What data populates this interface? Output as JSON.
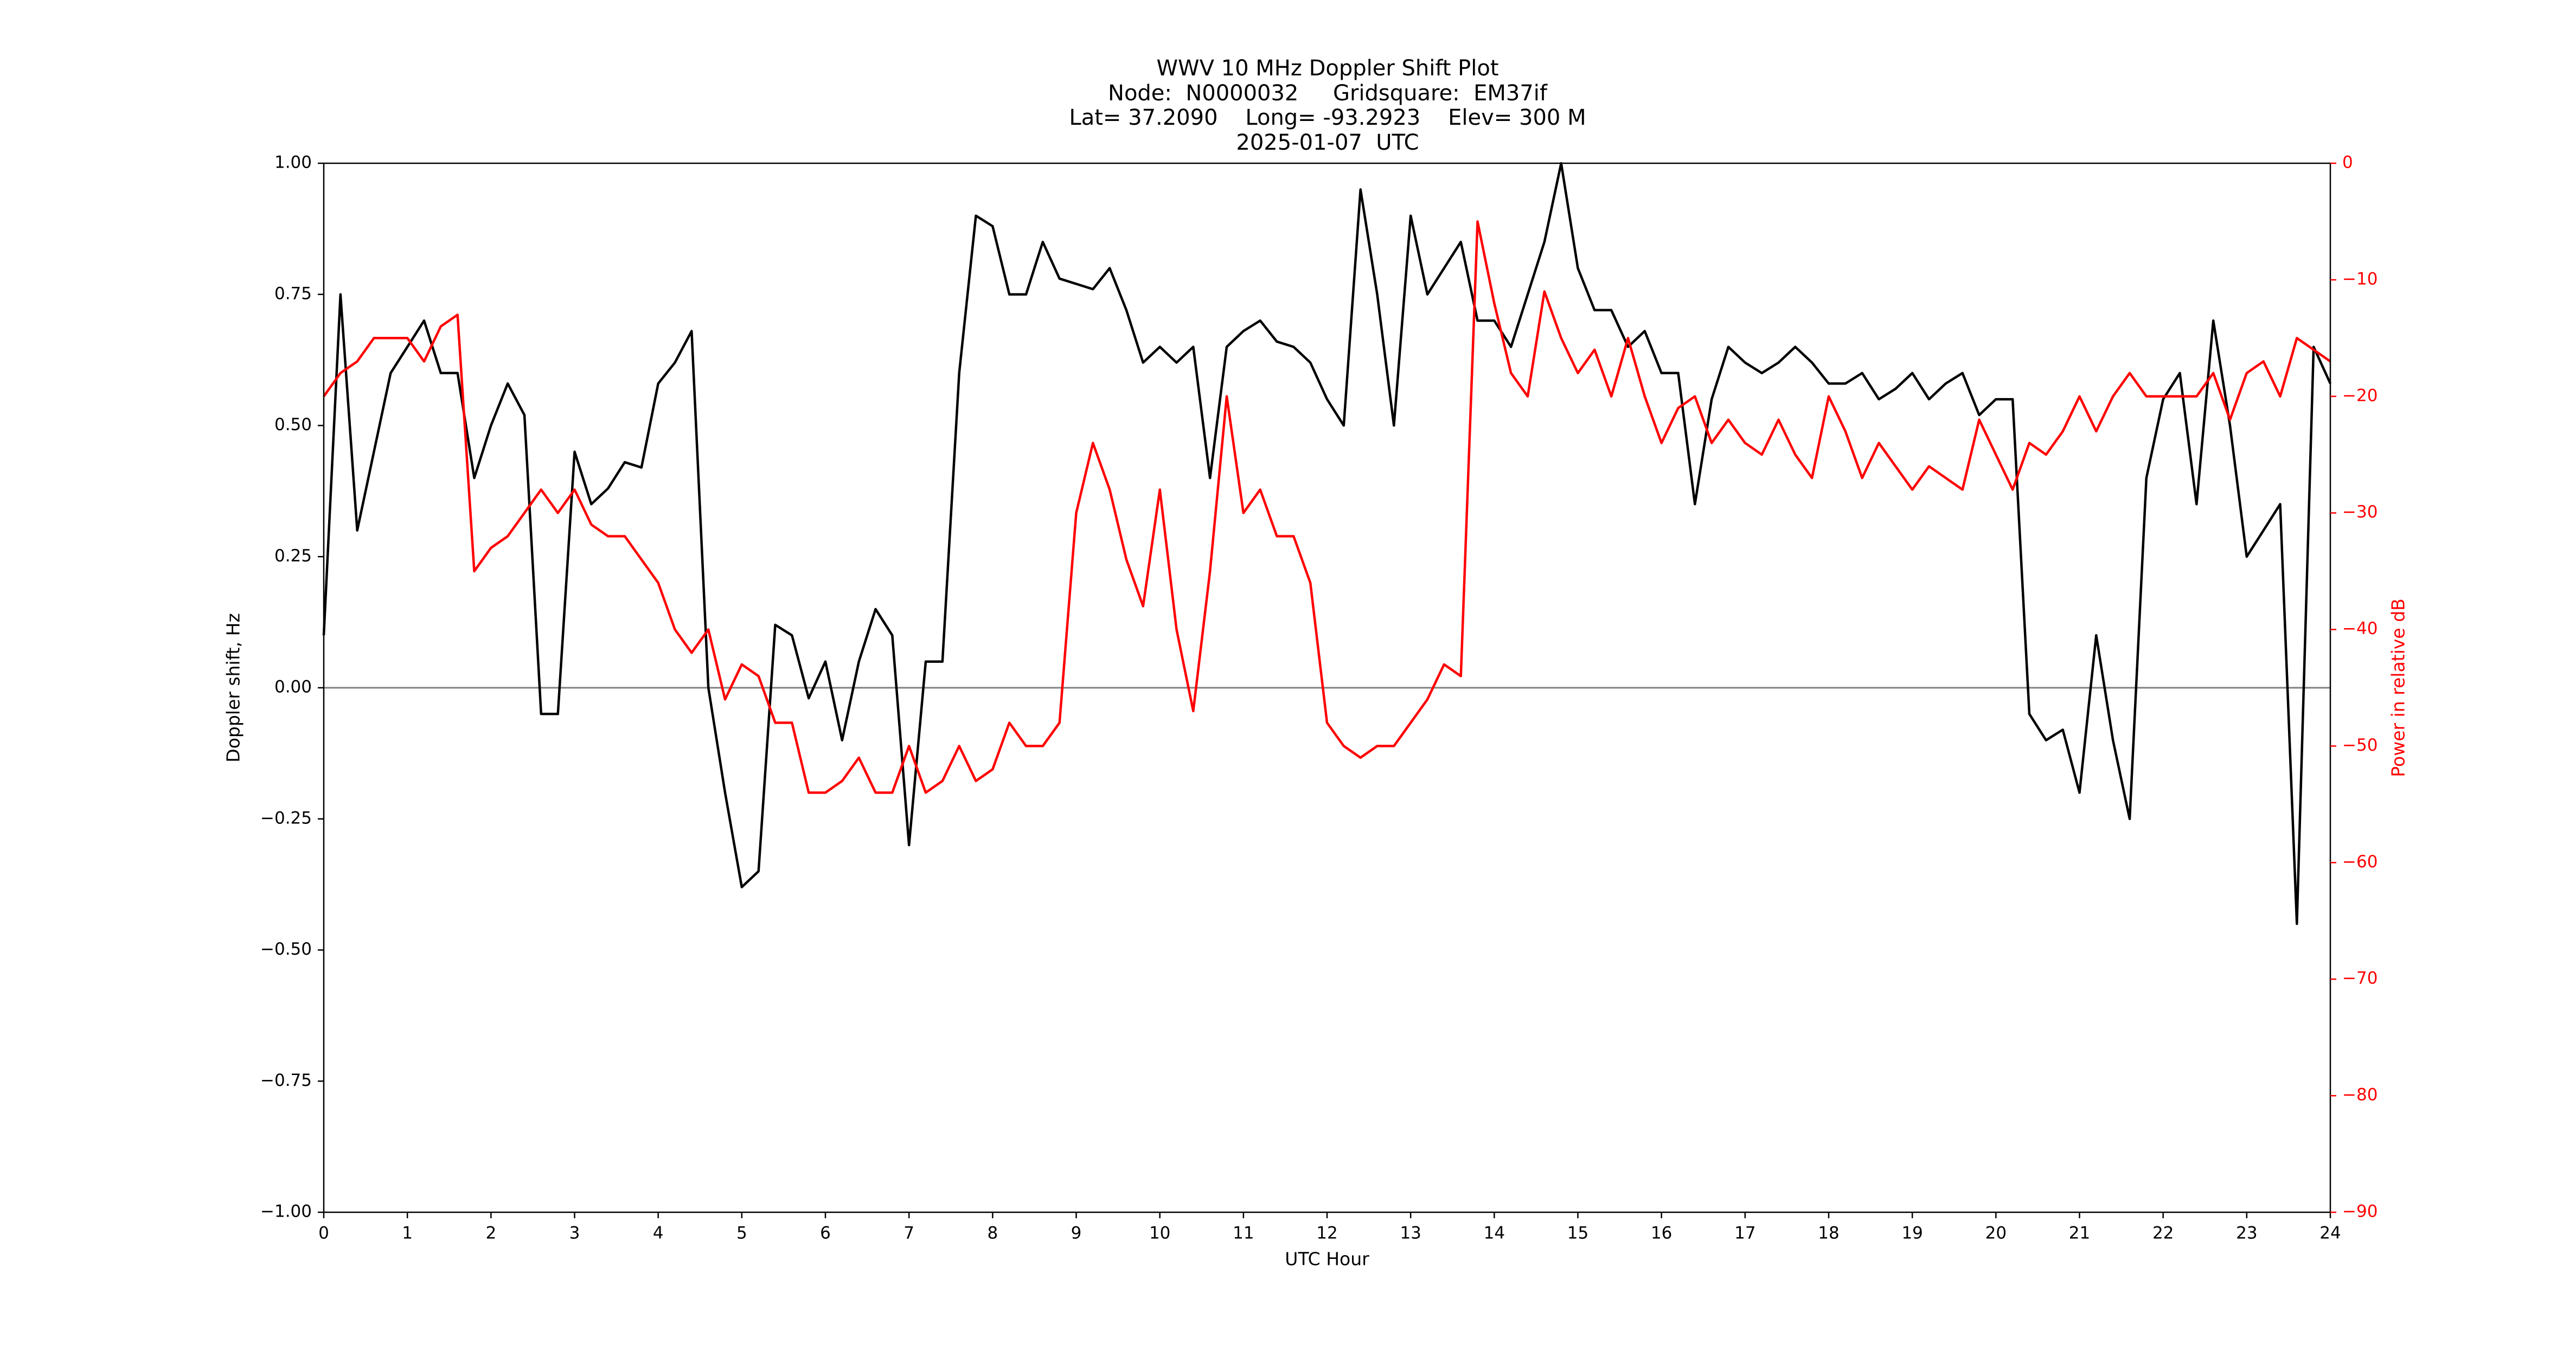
{
  "chart_data": {
    "type": "line",
    "title": [
      "WWV 10 MHz Doppler Shift Plot",
      "Node:  N0000032     Gridsquare:  EM37if",
      "Lat= 37.2090    Long= -93.2923    Elev= 300 M",
      "2025-01-07  UTC"
    ],
    "xlabel": "UTC Hour",
    "ylabel": "Doppler shift, Hz",
    "y2label": "Power in relative dB",
    "xlim": [
      0,
      24
    ],
    "xticks": [
      0,
      1,
      2,
      3,
      4,
      5,
      6,
      7,
      8,
      9,
      10,
      11,
      12,
      13,
      14,
      15,
      16,
      17,
      18,
      19,
      20,
      21,
      22,
      23,
      24
    ],
    "ylim": [
      -1,
      1
    ],
    "yticks": [
      {
        "value": -1,
        "label": "−1.00"
      },
      {
        "value": -0.75,
        "label": "−0.75"
      },
      {
        "value": -0.5,
        "label": "−0.50"
      },
      {
        "value": -0.25,
        "label": "−0.25"
      },
      {
        "value": 0,
        "label": "0.00"
      },
      {
        "value": 0.25,
        "label": "0.25"
      },
      {
        "value": 0.5,
        "label": "0.50"
      },
      {
        "value": 0.75,
        "label": "0.75"
      },
      {
        "value": 1,
        "label": "1.00"
      }
    ],
    "y2lim": [
      -90,
      0
    ],
    "y2ticks": [
      {
        "value": -90,
        "label": "−90"
      },
      {
        "value": -80,
        "label": "−80"
      },
      {
        "value": -70,
        "label": "−70"
      },
      {
        "value": -60,
        "label": "−60"
      },
      {
        "value": -50,
        "label": "−50"
      },
      {
        "value": -40,
        "label": "−40"
      },
      {
        "value": -30,
        "label": "−30"
      },
      {
        "value": -20,
        "label": "−20"
      },
      {
        "value": -10,
        "label": "−10"
      },
      0
    ],
    "y2color": "#ff0000",
    "hline": 0,
    "x": [
      0,
      0.2,
      0.4,
      0.6,
      0.8,
      1,
      1.2,
      1.4,
      1.6,
      1.8,
      2,
      2.2,
      2.4,
      2.6,
      2.8,
      3,
      3.2,
      3.4,
      3.6,
      3.8,
      4,
      4.2,
      4.4,
      4.6,
      4.8,
      5,
      5.2,
      5.4,
      5.6,
      5.8,
      6,
      6.2,
      6.4,
      6.6,
      6.8,
      7,
      7.2,
      7.4,
      7.6,
      7.8,
      8,
      8.2,
      8.4,
      8.6,
      8.8,
      9,
      9.2,
      9.4,
      9.6,
      9.8,
      10,
      10.2,
      10.4,
      10.6,
      10.8,
      11,
      11.2,
      11.4,
      11.6,
      11.8,
      12,
      12.2,
      12.4,
      12.6,
      12.8,
      13,
      13.2,
      13.4,
      13.6,
      13.8,
      14,
      14.2,
      14.4,
      14.6,
      14.8,
      15,
      15.2,
      15.4,
      15.6,
      15.8,
      16,
      16.2,
      16.4,
      16.6,
      16.8,
      17,
      17.2,
      17.4,
      17.6,
      17.8,
      18,
      18.2,
      18.4,
      18.6,
      18.8,
      19,
      19.2,
      19.4,
      19.6,
      19.8,
      20,
      20.2,
      20.4,
      20.6,
      20.8,
      21,
      21.2,
      21.4,
      21.6,
      21.8,
      22,
      22.2,
      22.4,
      22.6,
      22.8,
      23,
      23.2,
      23.4,
      23.6,
      23.8,
      24
    ],
    "series": [
      {
        "color": "#000000",
        "axis": "y",
        "values": [
          0.1,
          0.75,
          0.3,
          0.45,
          0.6,
          0.65,
          0.7,
          0.6,
          0.6,
          0.4,
          0.5,
          0.58,
          0.52,
          -0.05,
          -0.05,
          0.45,
          0.35,
          0.38,
          0.43,
          0.42,
          0.58,
          0.62,
          0.68,
          0,
          -0.2,
          -0.38,
          -0.35,
          0.12,
          0.1,
          -0.02,
          0.05,
          -0.1,
          0.05,
          0.15,
          0.1,
          -0.3,
          0.05,
          0.05,
          0.6,
          0.9,
          0.88,
          0.75,
          0.75,
          0.85,
          0.78,
          0.77,
          0.76,
          0.8,
          0.72,
          0.62,
          0.65,
          0.62,
          0.65,
          0.4,
          0.65,
          0.68,
          0.7,
          0.66,
          0.65,
          0.62,
          0.55,
          0.5,
          0.95,
          0.75,
          0.5,
          0.9,
          0.75,
          0.8,
          0.85,
          0.7,
          0.7,
          0.65,
          0.75,
          0.85,
          1,
          0.8,
          0.72,
          0.72,
          0.65,
          0.68,
          0.6,
          0.6,
          0.35,
          0.55,
          0.65,
          0.62,
          0.6,
          0.62,
          0.65,
          0.62,
          0.58,
          0.58,
          0.6,
          0.55,
          0.57,
          0.6,
          0.55,
          0.58,
          0.6,
          0.52,
          0.55,
          0.55,
          -0.05,
          -0.1,
          -0.08,
          -0.2,
          0.1,
          -0.1,
          -0.25,
          0.4,
          0.55,
          0.6,
          0.35,
          0.7,
          0.5,
          0.25,
          0.3,
          0.35,
          -0.45,
          0.65,
          0.58
        ]
      },
      {
        "color": "#ff0000",
        "axis": "y2",
        "values": [
          -20,
          -18,
          -17,
          -15,
          -15,
          -15,
          -17,
          -14,
          -13,
          -35,
          -33,
          -32,
          -30,
          -28,
          -30,
          -28,
          -31,
          -32,
          -32,
          -34,
          -36,
          -40,
          -42,
          -40,
          -46,
          -43,
          -44,
          -48,
          -48,
          -54,
          -54,
          -53,
          -51,
          -54,
          -54,
          -50,
          -54,
          -53,
          -50,
          -53,
          -52,
          -48,
          -50,
          -50,
          -48,
          -30,
          -24,
          -28,
          -34,
          -38,
          -28,
          -40,
          -47,
          -35,
          -20,
          -30,
          -28,
          -32,
          -32,
          -36,
          -48,
          -50,
          -51,
          -50,
          -50,
          -48,
          -46,
          -43,
          -44,
          -5,
          -12,
          -18,
          -20,
          -11,
          -15,
          -18,
          -16,
          -20,
          -15,
          -20,
          -24,
          -21,
          -20,
          -24,
          -22,
          -24,
          -25,
          -22,
          -25,
          -27,
          -20,
          -23,
          -27,
          -24,
          -26,
          -28,
          -26,
          -27,
          -28,
          -22,
          -25,
          -28,
          -24,
          -25,
          -23,
          -20,
          -23,
          -20,
          -18,
          -20,
          -20,
          -20,
          -20,
          -18,
          -22,
          -18,
          -17,
          -20,
          -15,
          -16,
          -17
        ]
      }
    ]
  }
}
